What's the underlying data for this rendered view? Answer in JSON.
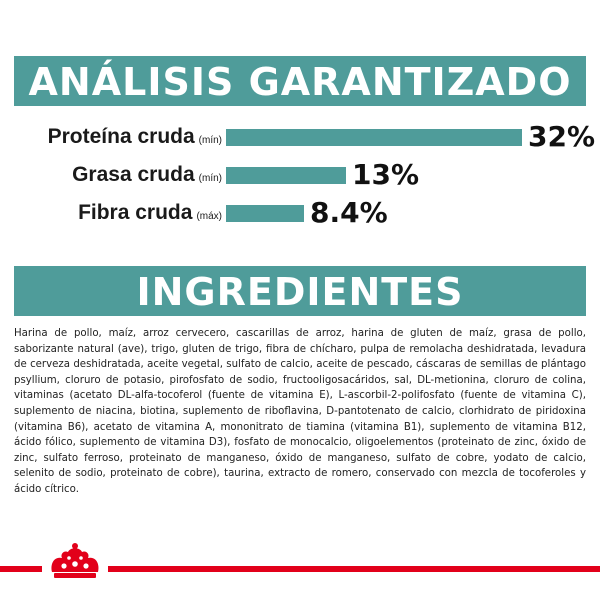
{
  "analysis": {
    "title": "ANÁLISIS GARANTIZADO",
    "rows": [
      {
        "name": "Proteína cruda",
        "qualifier": "(mín)",
        "value_text": "32%",
        "percent": 32
      },
      {
        "name": "Grasa cruda",
        "qualifier": "(mín)",
        "value_text": "13%",
        "percent": 13
      },
      {
        "name": "Fibra cruda",
        "qualifier": "(máx)",
        "value_text": "8.4%",
        "percent": 8.4
      }
    ]
  },
  "ingredients": {
    "title": "INGREDIENTES",
    "text": "Harina de pollo, maíz, arroz cervecero, cascarillas de arroz, harina de gluten de maíz, grasa de pollo, saborizante natural (ave), trigo, gluten de trigo, fibra de chícharo, pulpa de remolacha deshidratada, levadura de cerveza deshidratada, aceite vegetal, sulfato de calcio, aceite de pescado, cáscaras de semillas de plántago psyllium, cloruro de potasio, pirofosfato de sodio, fructooligosacáridos, sal, DL-metionina, cloruro de colina, vitaminas (acetato DL-alfa-tocoferol (fuente de vitamina E), L-ascorbil-2-polifosfato (fuente de vitamina C), suplemento de niacina, biotina, suplemento de riboflavina, D-pantotenato de calcio, clorhidrato de piridoxina (vitamina B6), acetato de vitamina A, mononitrato de tiamina (vitamina B1), suplemento de vitamina B12, ácido fólico, suplemento de vitamina D3), fosfato de monocalcio, oligoelementos (proteinato de zinc, óxido de zinc, sulfato ferroso, proteinato de manganeso, óxido de manganeso, sulfato de cobre, yodato de calcio, selenito de sodio, proteinato de cobre), taurina, extracto de romero, conservado con mezcla de tocoferoles y ácido cítrico."
  },
  "footer": {
    "logo_icon": "royal-canin-crown-icon",
    "accent_color": "#e2001a"
  },
  "colors": {
    "teal": "#4f9c9a"
  }
}
